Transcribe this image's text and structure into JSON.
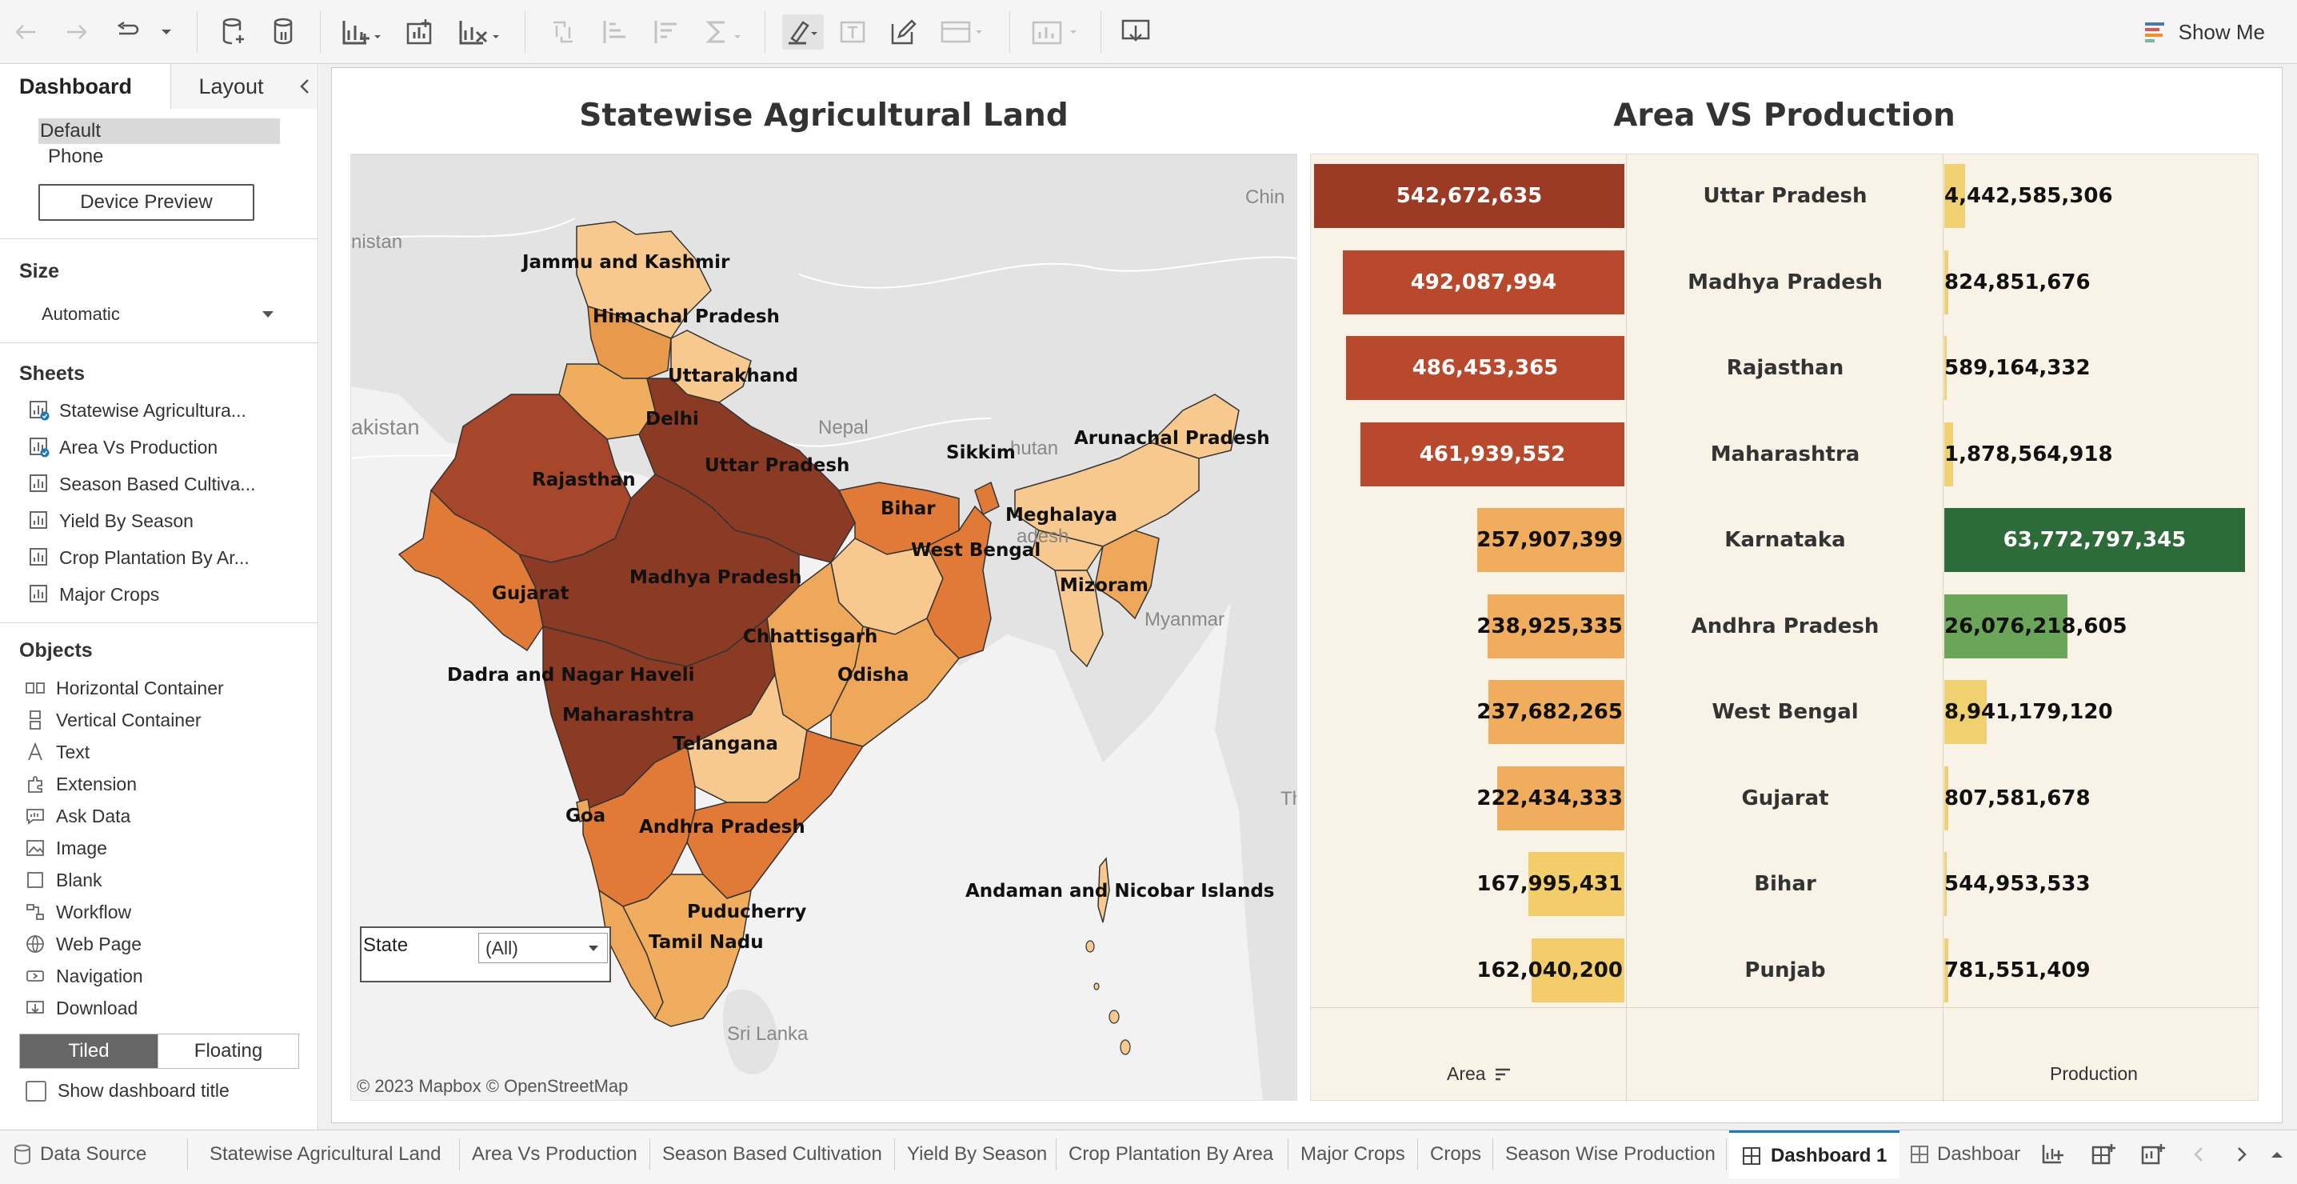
{
  "toolbar": {
    "icons": [
      "undo-icon",
      "redo-icon",
      "redo-dropdown-icon",
      "new-data-source-icon",
      "pause-updates-icon",
      "new-worksheet-icon",
      "new-dashboard-icon",
      "clear-sheet-icon",
      "swap-icon",
      "sort-asc-icon",
      "sort-desc-icon",
      "totals-icon",
      "highlight-icon",
      "labels-icon",
      "format-icon",
      "fit-icon",
      "show-cards-icon",
      "download-icon"
    ],
    "show_me_label": "Show Me"
  },
  "left_panel": {
    "tab_dashboard": "Dashboard",
    "tab_layout": "Layout",
    "devices": [
      "Default",
      "Phone"
    ],
    "device_preview_label": "Device Preview",
    "size_title": "Size",
    "size_value": "Automatic",
    "sheets_title": "Sheets",
    "sheets": [
      {
        "label": "Statewise Agricultura...",
        "used": true
      },
      {
        "label": "Area Vs Production",
        "used": true
      },
      {
        "label": "Season Based Cultiva...",
        "used": false
      },
      {
        "label": "Yield By Season",
        "used": false
      },
      {
        "label": "Crop Plantation By Ar...",
        "used": false
      },
      {
        "label": "Major Crops",
        "used": false
      }
    ],
    "objects_title": "Objects",
    "objects": [
      {
        "label": "Horizontal Container",
        "icon": "horizontal-container-icon"
      },
      {
        "label": "Vertical Container",
        "icon": "vertical-container-icon"
      },
      {
        "label": "Text",
        "icon": "text-icon"
      },
      {
        "label": "Extension",
        "icon": "extension-icon"
      },
      {
        "label": "Ask Data",
        "icon": "ask-data-icon"
      },
      {
        "label": "Image",
        "icon": "image-icon"
      },
      {
        "label": "Blank",
        "icon": "blank-icon"
      },
      {
        "label": "Workflow",
        "icon": "workflow-icon"
      },
      {
        "label": "Web Page",
        "icon": "web-page-icon"
      },
      {
        "label": "Navigation",
        "icon": "navigation-icon"
      },
      {
        "label": "Download",
        "icon": "download-icon"
      }
    ],
    "tiled_label": "Tiled",
    "floating_label": "Floating",
    "show_title_label": "Show dashboard title"
  },
  "map_sheet": {
    "title": "Statewise Agricultural Land",
    "state_labels": [
      "Jammu and Kashmir",
      "Himachal Pradesh",
      "Uttarakhand",
      "Delhi",
      "Rajasthan",
      "Uttar Pradesh",
      "Bihar",
      "Sikkim",
      "Arunachal Pradesh",
      "Meghalaya",
      "West Bengal",
      "Mizoram",
      "Gujarat",
      "Madhya Pradesh",
      "Chhattisgarh",
      "Odisha",
      "Dadra and Nagar Haveli",
      "Maharashtra",
      "Telangana",
      "Goa",
      "Andhra Pradesh",
      "Andaman and Nicobar Islands",
      "Puducherry",
      "Tamil Nadu"
    ],
    "background_labels": [
      "Chin",
      "nistan",
      "akistan",
      "Nepal",
      "hutan",
      "adesh",
      "Myanmar",
      "Th",
      "Sri Lanka"
    ],
    "filter_label": "State",
    "filter_value": "(All)",
    "attribution": "© 2023 Mapbox  © OpenStreetMap",
    "colors": {
      "darkest": "#8b3a24",
      "dark": "#a6472c",
      "mid": "#e07a36",
      "light": "#efa85a",
      "lightest": "#f7c98f",
      "land": "#e3e3e3",
      "water": "#ffffff"
    }
  },
  "avp_sheet": {
    "title": "Area VS Production",
    "area_axis_title": "Area",
    "production_axis_title": "Production",
    "colors": {
      "area_high": "#9b3b26",
      "area_mid": "#c4512f",
      "area_light": "#f0ad5e",
      "area_yellow": "#f2cd6a",
      "prod_dark_green": "#2e6b3a",
      "prod_green": "#6aa55a",
      "prod_yellow": "#f0d070"
    }
  },
  "chart_data": {
    "type": "bar",
    "categories": [
      "Uttar Pradesh",
      "Madhya Pradesh",
      "Rajasthan",
      "Maharashtra",
      "Karnataka",
      "Andhra Pradesh",
      "West Bengal",
      "Gujarat",
      "Bihar",
      "Punjab"
    ],
    "series": [
      {
        "name": "Area",
        "values": [
          542672635,
          492087994,
          486453365,
          461939552,
          257907399,
          238925335,
          237682265,
          222434333,
          167995431,
          162040200
        ],
        "labels": [
          "542,672,635",
          "492,087,994",
          "486,453,365",
          "461,939,552",
          "257,907,399",
          "238,925,335",
          "237,682,265",
          "222,434,333",
          "167,995,431",
          "162,040,200"
        ]
      },
      {
        "name": "Production",
        "values": [
          4442585306,
          824851676,
          589164332,
          1878564918,
          63772797345,
          26076218605,
          8941179120,
          807581678,
          544953533,
          781551409
        ],
        "labels": [
          "4,442,585,306",
          "824,851,676",
          "589,164,332",
          "1,878,564,918",
          "63,772,797,345",
          "26,076,218,605",
          "8,941,179,120",
          "807,581,678",
          "544,953,533",
          "781,551,409"
        ]
      }
    ],
    "title": "Area VS Production",
    "xlabel": "",
    "ylabel": ""
  },
  "bottom_tabs": {
    "data_source": "Data Source",
    "tabs": [
      "Statewise Agricultural Land",
      "Area Vs Production",
      "Season Based Cultivation",
      "Yield By Season",
      "Crop Plantation By Area",
      "Major Crops",
      "Crops",
      "Season Wise Production"
    ],
    "active_tab": "Dashboard 1",
    "partial_tab": "Dashboar"
  }
}
